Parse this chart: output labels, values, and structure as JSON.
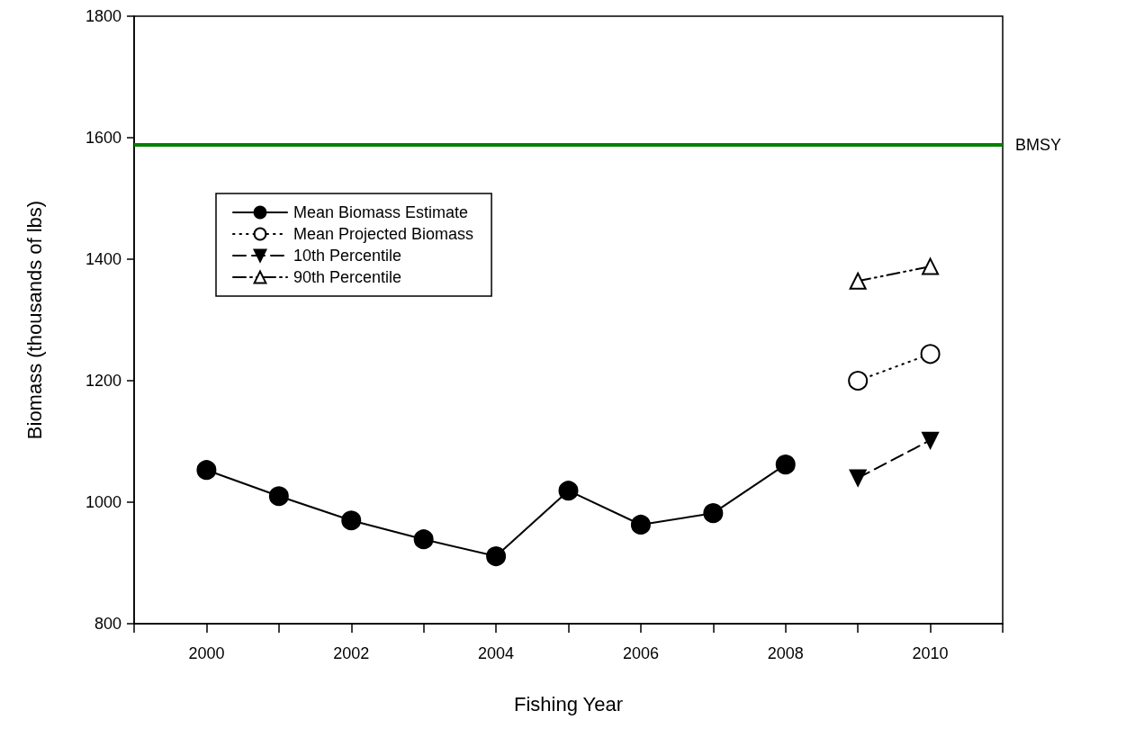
{
  "chart_data": {
    "type": "line",
    "xlabel": "Fishing Year",
    "ylabel": "Biomass (thousands of lbs)",
    "xlim": [
      1999,
      2011
    ],
    "xticks": [
      {
        "value": 1999,
        "label": null
      },
      2000,
      {
        "value": 2001,
        "label": null
      },
      2002,
      {
        "value": 2003,
        "label": null
      },
      2004,
      {
        "value": 2005,
        "label": null
      },
      2006,
      {
        "value": 2007,
        "label": null
      },
      2008,
      {
        "value": 2009,
        "label": null
      },
      2010,
      {
        "value": 2011,
        "label": null
      }
    ],
    "ylim": [
      800,
      1800
    ],
    "yticks": [
      800,
      1000,
      1200,
      1400,
      1600,
      1800
    ],
    "grid": false,
    "legend": "top left",
    "series": [
      {
        "name": "Mean Biomass Estimate",
        "color": "#000000",
        "marker": "circle",
        "line_style": "solid",
        "x": [
          2000,
          2001,
          2002,
          2003,
          2004,
          2005,
          2006,
          2007,
          2008
        ],
        "values": [
          1053,
          1010,
          970,
          939,
          911,
          1019,
          963,
          982,
          1062
        ]
      },
      {
        "name": "Mean Projected Biomass",
        "color": "#000000",
        "marker": "open circle",
        "line_style": "dotted",
        "x": [
          2009,
          2010
        ],
        "values": [
          1200,
          1244
        ]
      },
      {
        "name": "10th Percentile",
        "color": "#000000",
        "marker": "triangle down",
        "line_style": "dashed",
        "x": [
          2009,
          2010
        ],
        "values": [
          1040,
          1102
        ]
      },
      {
        "name": "90th Percentile",
        "color": "#000000",
        "marker": "triangle",
        "line_style": "dashdotdot",
        "x": [
          2009,
          2010
        ],
        "values": [
          1364,
          1388
        ]
      }
    ],
    "ref_lines": [
      {
        "axis": "y",
        "value": 1588,
        "label": "BMSY",
        "color": "#008000",
        "line_style": "solid"
      }
    ]
  }
}
